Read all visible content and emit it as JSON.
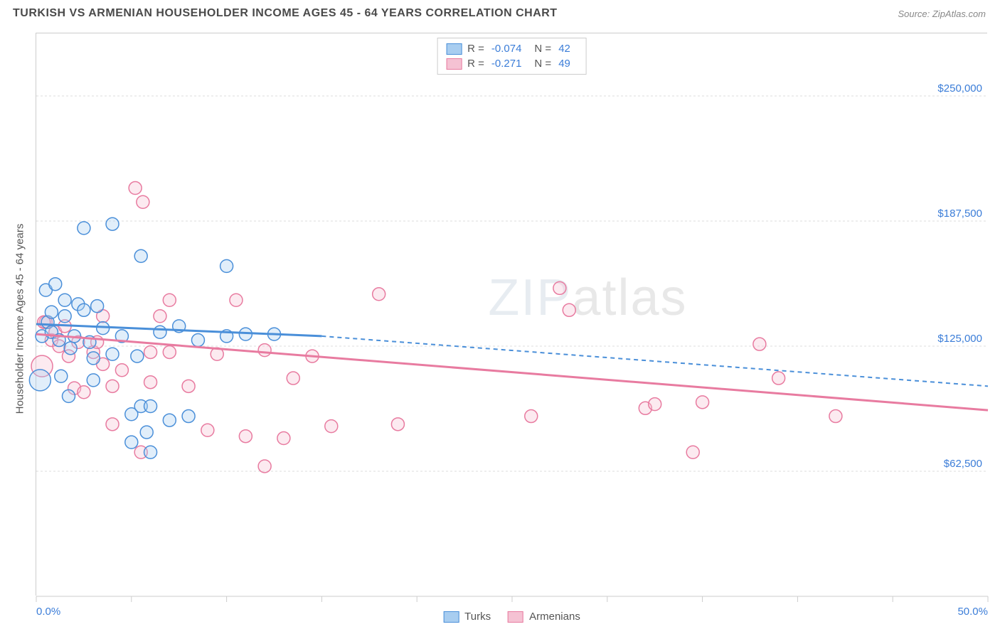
{
  "title": "TURKISH VS ARMENIAN HOUSEHOLDER INCOME AGES 45 - 64 YEARS CORRELATION CHART",
  "source": "Source: ZipAtlas.com",
  "watermark": {
    "zip": "ZIP",
    "atlas": "atlas"
  },
  "chart": {
    "type": "scatter",
    "background_color": "#ffffff",
    "grid_color": "#dddddd",
    "border_color": "#cccccc",
    "xlim": [
      0,
      50
    ],
    "ylim": [
      0,
      281250
    ],
    "x_tick_positions": [
      0,
      5,
      10,
      15,
      20,
      25,
      30,
      35,
      40,
      45,
      50
    ],
    "x_tick_labels_shown": {
      "0": "0.0%",
      "50": "50.0%"
    },
    "y_gridlines": [
      62500,
      125000,
      187500,
      250000
    ],
    "y_tick_labels": {
      "62500": "$62,500",
      "125000": "$125,000",
      "187500": "$187,500",
      "250000": "$250,000"
    },
    "y_axis_title": "Householder Income Ages 45 - 64 years",
    "marker_radius": 9,
    "marker_radius_large": 15,
    "marker_stroke_width": 1.5,
    "marker_fill_opacity": 0.35,
    "trend_line_width": 3,
    "trend_dash_pattern": "6,5",
    "series": [
      {
        "name": "Turks",
        "color_stroke": "#4a8fd9",
        "color_fill": "#a8cdf0",
        "R": "-0.074",
        "N": "42",
        "trend_solid": {
          "x1": 0,
          "y1": 136000,
          "x2": 15,
          "y2": 130000
        },
        "trend_dash": {
          "x1": 15,
          "y1": 130000,
          "x2": 50,
          "y2": 105000
        },
        "points": [
          {
            "x": 0.3,
            "y": 130000
          },
          {
            "x": 0.5,
            "y": 153000
          },
          {
            "x": 0.6,
            "y": 137000
          },
          {
            "x": 0.8,
            "y": 132000
          },
          {
            "x": 0.8,
            "y": 142000
          },
          {
            "x": 1.0,
            "y": 156000
          },
          {
            "x": 1.2,
            "y": 128000
          },
          {
            "x": 1.3,
            "y": 110000
          },
          {
            "x": 1.5,
            "y": 148000
          },
          {
            "x": 1.5,
            "y": 140000
          },
          {
            "x": 1.7,
            "y": 100000
          },
          {
            "x": 1.8,
            "y": 124000
          },
          {
            "x": 2.0,
            "y": 130000
          },
          {
            "x": 2.2,
            "y": 146000
          },
          {
            "x": 2.5,
            "y": 184000
          },
          {
            "x": 2.5,
            "y": 143000
          },
          {
            "x": 2.8,
            "y": 127000
          },
          {
            "x": 3.0,
            "y": 108000
          },
          {
            "x": 3.0,
            "y": 119000
          },
          {
            "x": 3.2,
            "y": 145000
          },
          {
            "x": 3.5,
            "y": 134000
          },
          {
            "x": 4.0,
            "y": 186000
          },
          {
            "x": 4.0,
            "y": 121000
          },
          {
            "x": 4.5,
            "y": 130000
          },
          {
            "x": 5.0,
            "y": 91000
          },
          {
            "x": 5.0,
            "y": 77000
          },
          {
            "x": 5.3,
            "y": 120000
          },
          {
            "x": 5.5,
            "y": 95000
          },
          {
            "x": 5.5,
            "y": 170000
          },
          {
            "x": 5.8,
            "y": 82000
          },
          {
            "x": 6.0,
            "y": 95000
          },
          {
            "x": 6.0,
            "y": 72000
          },
          {
            "x": 6.5,
            "y": 132000
          },
          {
            "x": 7.0,
            "y": 88000
          },
          {
            "x": 7.5,
            "y": 135000
          },
          {
            "x": 8.0,
            "y": 90000
          },
          {
            "x": 8.5,
            "y": 128000
          },
          {
            "x": 10.0,
            "y": 165000
          },
          {
            "x": 10.0,
            "y": 130000
          },
          {
            "x": 11.0,
            "y": 131000
          },
          {
            "x": 12.5,
            "y": 131000
          },
          {
            "x": 0.2,
            "y": 108000,
            "large": true
          }
        ]
      },
      {
        "name": "Armenians",
        "color_stroke": "#e87ba0",
        "color_fill": "#f5c2d3",
        "R": "-0.271",
        "N": "49",
        "trend_solid": {
          "x1": 0,
          "y1": 131000,
          "x2": 50,
          "y2": 93000
        },
        "trend_dash": null,
        "points": [
          {
            "x": 0.5,
            "y": 137000
          },
          {
            "x": 0.8,
            "y": 128000
          },
          {
            "x": 1.0,
            "y": 132000
          },
          {
            "x": 1.2,
            "y": 125000
          },
          {
            "x": 1.5,
            "y": 135000
          },
          {
            "x": 1.7,
            "y": 120000
          },
          {
            "x": 2.0,
            "y": 104000
          },
          {
            "x": 2.2,
            "y": 127000
          },
          {
            "x": 2.5,
            "y": 102000
          },
          {
            "x": 3.0,
            "y": 122000
          },
          {
            "x": 3.2,
            "y": 127000
          },
          {
            "x": 3.5,
            "y": 140000
          },
          {
            "x": 3.5,
            "y": 116000
          },
          {
            "x": 4.0,
            "y": 105000
          },
          {
            "x": 4.0,
            "y": 86000
          },
          {
            "x": 4.5,
            "y": 113000
          },
          {
            "x": 5.2,
            "y": 204000
          },
          {
            "x": 5.5,
            "y": 72000
          },
          {
            "x": 5.6,
            "y": 197000
          },
          {
            "x": 6.0,
            "y": 122000
          },
          {
            "x": 6.0,
            "y": 107000
          },
          {
            "x": 6.5,
            "y": 140000
          },
          {
            "x": 7.0,
            "y": 122000
          },
          {
            "x": 7.0,
            "y": 148000
          },
          {
            "x": 8.0,
            "y": 105000
          },
          {
            "x": 9.0,
            "y": 83000
          },
          {
            "x": 9.5,
            "y": 121000
          },
          {
            "x": 10.5,
            "y": 148000
          },
          {
            "x": 11.0,
            "y": 80000
          },
          {
            "x": 12.0,
            "y": 65000
          },
          {
            "x": 12.0,
            "y": 123000
          },
          {
            "x": 13.0,
            "y": 79000
          },
          {
            "x": 13.5,
            "y": 109000
          },
          {
            "x": 14.5,
            "y": 120000
          },
          {
            "x": 15.5,
            "y": 85000
          },
          {
            "x": 18.0,
            "y": 151000
          },
          {
            "x": 19.0,
            "y": 86000
          },
          {
            "x": 26.0,
            "y": 90000
          },
          {
            "x": 27.5,
            "y": 154000
          },
          {
            "x": 28.0,
            "y": 143000
          },
          {
            "x": 32.0,
            "y": 94000
          },
          {
            "x": 32.5,
            "y": 96000
          },
          {
            "x": 34.5,
            "y": 72000
          },
          {
            "x": 35.0,
            "y": 97000
          },
          {
            "x": 38.0,
            "y": 126000
          },
          {
            "x": 39.0,
            "y": 109000
          },
          {
            "x": 42.0,
            "y": 90000
          },
          {
            "x": 0.3,
            "y": 115000,
            "large": true
          },
          {
            "x": 0.4,
            "y": 137000
          }
        ]
      }
    ]
  },
  "bottom_legend": [
    {
      "label": "Turks",
      "fill": "#a8cdf0",
      "stroke": "#4a8fd9"
    },
    {
      "label": "Armenians",
      "fill": "#f5c2d3",
      "stroke": "#e87ba0"
    }
  ]
}
